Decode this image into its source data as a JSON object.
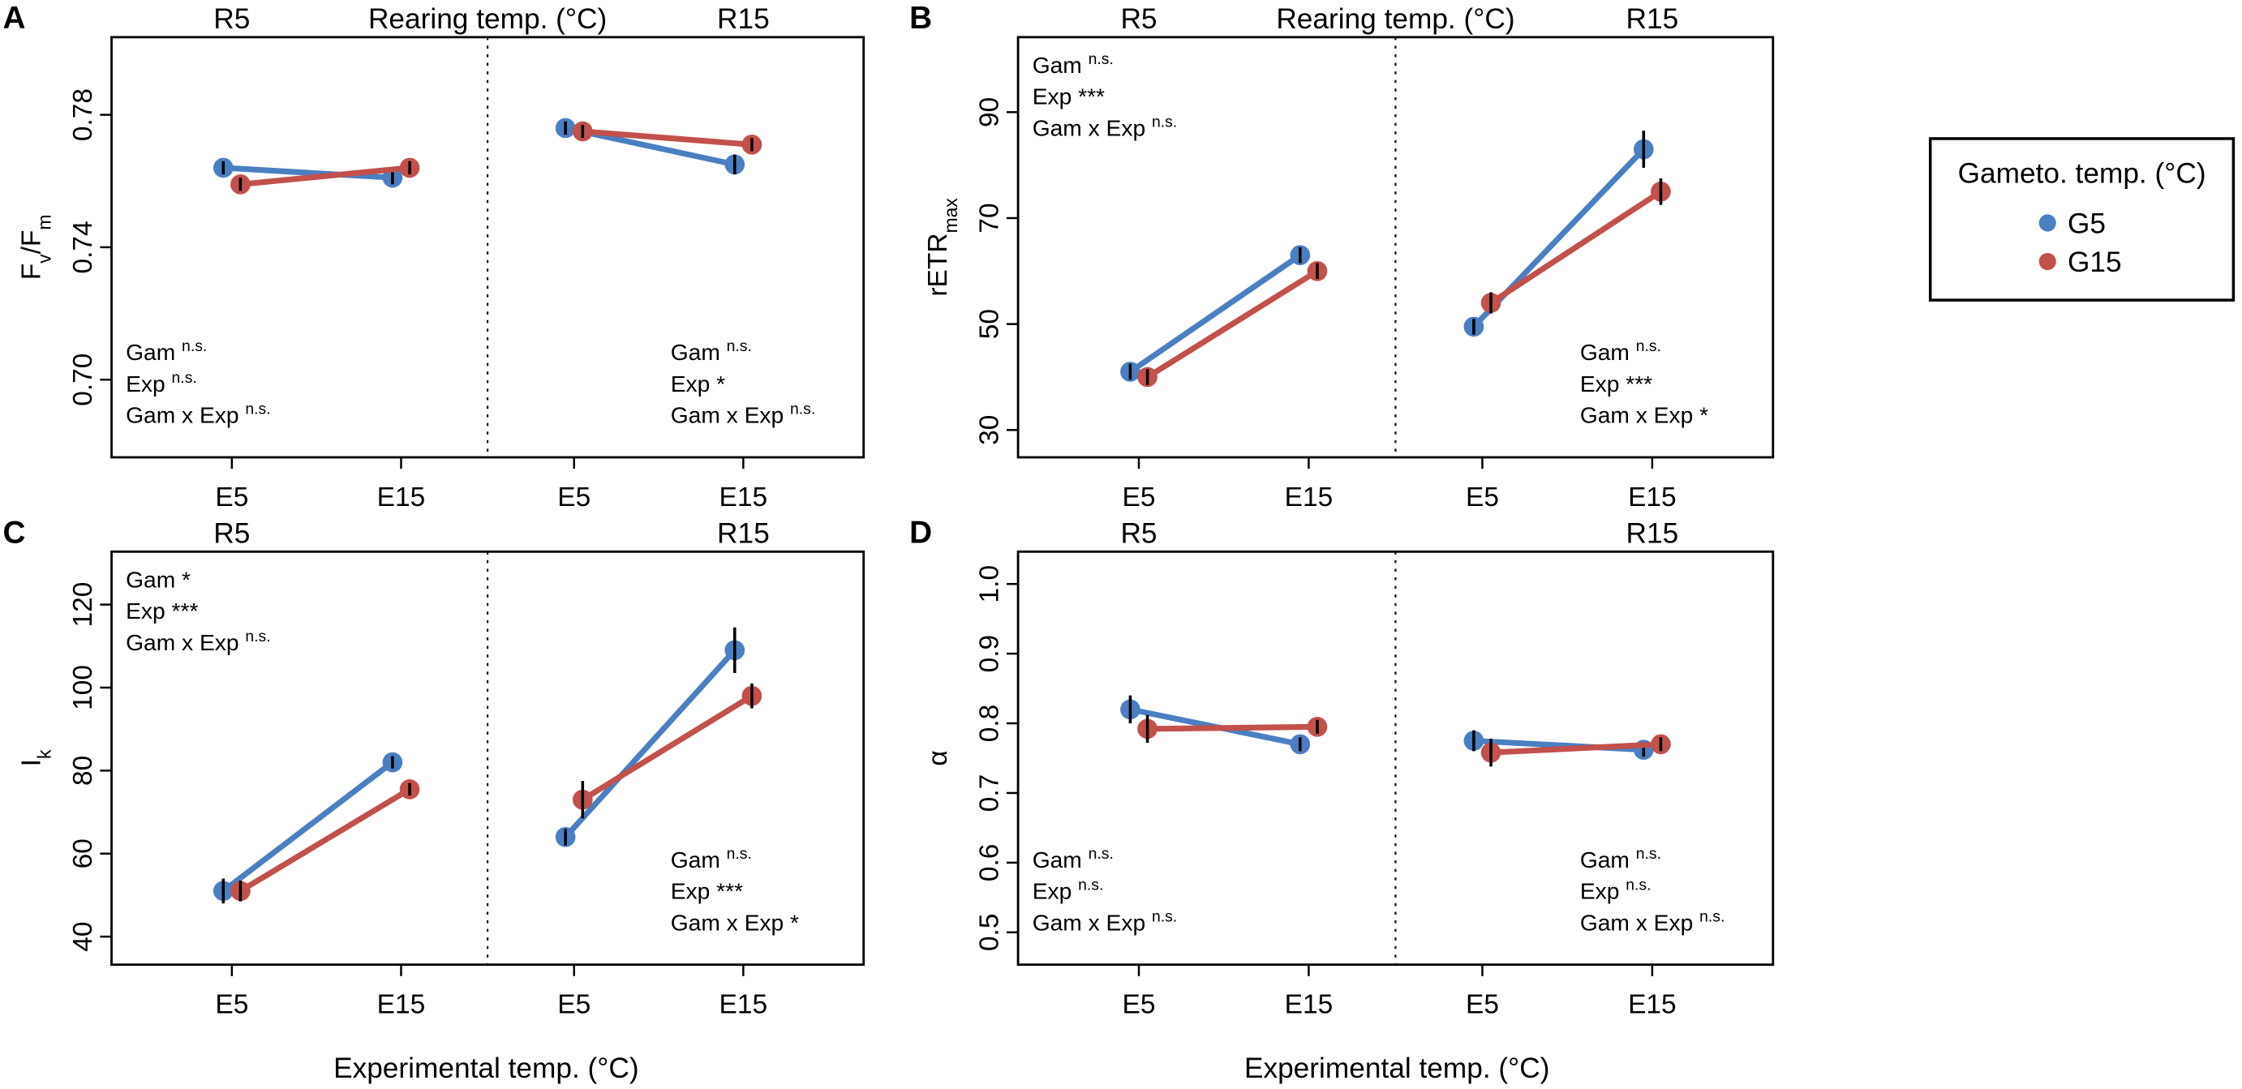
{
  "colors": {
    "G5": "#4a7fc1",
    "G15": "#c2504b",
    "axis": "#000000"
  },
  "x_title": "Experimental temp. (°C)",
  "legend": {
    "title": "Gameto. temp. (°C)",
    "entries": [
      {
        "label": "G5",
        "color_key": "G5"
      },
      {
        "label": "G15",
        "color_key": "G15"
      }
    ]
  },
  "chart_data": [
    {
      "type": "line",
      "id": "A",
      "letter": "A",
      "ylabel": "Fv/Fm",
      "ylabel_main": "F",
      "ylabel_sub1": "v",
      "ylabel_mid": "/F",
      "ylabel_sub2": "m",
      "ylim": [
        0.68,
        0.8
      ],
      "yticks": [
        "0.70",
        "0.74",
        "0.78"
      ],
      "strip_left": "R5",
      "strip_center": "Rearing temp. (°C)",
      "strip_right": "R15",
      "categories": [
        "E5",
        "E15",
        "E5",
        "E15"
      ],
      "groups": [
        {
          "rearing": "R5",
          "series": [
            {
              "name": "G5",
              "values": [
                0.764,
                0.761
              ],
              "err": [
                0.002,
                0.002
              ]
            },
            {
              "name": "G15",
              "values": [
                0.759,
                0.764
              ],
              "err": [
                0.002,
                0.002
              ]
            }
          ],
          "stats": {
            "position": "bottom-left",
            "gam": "Gam",
            "gam_sig": "n.s.",
            "exp": "Exp",
            "exp_sig": "n.s.",
            "int": "Gam x Exp",
            "int_sig": "n.s."
          }
        },
        {
          "rearing": "R15",
          "series": [
            {
              "name": "G5",
              "values": [
                0.776,
                0.765
              ],
              "err": [
                0.002,
                0.003
              ]
            },
            {
              "name": "G15",
              "values": [
                0.775,
                0.771
              ],
              "err": [
                0.002,
                0.002
              ]
            }
          ],
          "stats": {
            "position": "bottom-right",
            "gam": "Gam",
            "gam_sig": "n.s.",
            "exp": "Exp",
            "exp_sig": "*",
            "int": "Gam x Exp",
            "int_sig": "n.s."
          }
        }
      ]
    },
    {
      "type": "line",
      "id": "B",
      "letter": "B",
      "ylabel": "rETRmax",
      "ylabel_main": "rETR",
      "ylabel_sub1": "max",
      "ylim": [
        27,
        102
      ],
      "yticks": [
        "30",
        "50",
        "70",
        "90"
      ],
      "strip_left": "R5",
      "strip_center": "Rearing temp. (°C)",
      "strip_right": "R15",
      "categories": [
        "E5",
        "E15",
        "E5",
        "E15"
      ],
      "groups": [
        {
          "rearing": "R5",
          "series": [
            {
              "name": "G5",
              "values": [
                41,
                63
              ],
              "err": [
                1.5,
                1.5
              ]
            },
            {
              "name": "G15",
              "values": [
                40,
                60
              ],
              "err": [
                1.5,
                1.5
              ]
            }
          ],
          "stats": {
            "position": "top-left",
            "gam": "Gam",
            "gam_sig": "n.s.",
            "exp": "Exp",
            "exp_sig": "***",
            "int": "Gam x Exp",
            "int_sig": "n.s."
          }
        },
        {
          "rearing": "R15",
          "series": [
            {
              "name": "G5",
              "values": [
                49.5,
                83
              ],
              "err": [
                1.5,
                3.5
              ]
            },
            {
              "name": "G15",
              "values": [
                54,
                75
              ],
              "err": [
                2,
                2.5
              ]
            }
          ],
          "stats": {
            "position": "bottom-right",
            "gam": "Gam",
            "gam_sig": "n.s.",
            "exp": "Exp",
            "exp_sig": "***",
            "int": "Gam x Exp",
            "int_sig": "*"
          }
        }
      ]
    },
    {
      "type": "line",
      "id": "C",
      "letter": "C",
      "ylabel": "Ik",
      "ylabel_main": "I",
      "ylabel_sub1": "k",
      "ylim": [
        36,
        130
      ],
      "yticks": [
        "40",
        "60",
        "80",
        "100",
        "120"
      ],
      "strip_left": "R5",
      "strip_center": "",
      "strip_right": "R15",
      "categories": [
        "E5",
        "E15",
        "E5",
        "E15"
      ],
      "groups": [
        {
          "rearing": "R5",
          "series": [
            {
              "name": "G5",
              "values": [
                51,
                82
              ],
              "err": [
                3,
                1.5
              ]
            },
            {
              "name": "G15",
              "values": [
                51,
                75.5
              ],
              "err": [
                2.5,
                1.5
              ]
            }
          ],
          "stats": {
            "position": "top-left",
            "gam": "Gam",
            "gam_sig": "*",
            "exp": "Exp",
            "exp_sig": "***",
            "int": "Gam x Exp",
            "int_sig": "n.s."
          }
        },
        {
          "rearing": "R15",
          "series": [
            {
              "name": "G5",
              "values": [
                64,
                109
              ],
              "err": [
                2,
                5.5
              ]
            },
            {
              "name": "G15",
              "values": [
                73,
                98
              ],
              "err": [
                4.5,
                3
              ]
            }
          ],
          "stats": {
            "position": "bottom-right",
            "gam": "Gam",
            "gam_sig": "n.s.",
            "exp": "Exp",
            "exp_sig": "***",
            "int": "Gam x Exp",
            "int_sig": "*"
          }
        }
      ]
    },
    {
      "type": "line",
      "id": "D",
      "letter": "D",
      "ylabel": "α",
      "ylabel_main": "α",
      "ylim": [
        0.47,
        1.03
      ],
      "yticks": [
        "0.5",
        "0.6",
        "0.7",
        "0.8",
        "0.9",
        "1.0"
      ],
      "strip_left": "R5",
      "strip_center": "",
      "strip_right": "R15",
      "categories": [
        "E5",
        "E15",
        "E5",
        "E15"
      ],
      "groups": [
        {
          "rearing": "R5",
          "series": [
            {
              "name": "G5",
              "values": [
                0.82,
                0.77
              ],
              "err": [
                0.02,
                0.01
              ]
            },
            {
              "name": "G15",
              "values": [
                0.792,
                0.795
              ],
              "err": [
                0.02,
                0.01
              ]
            }
          ],
          "stats": {
            "position": "bottom-left",
            "gam": "Gam",
            "gam_sig": "n.s.",
            "exp": "Exp",
            "exp_sig": "n.s.",
            "int": "Gam x Exp",
            "int_sig": "n.s."
          }
        },
        {
          "rearing": "R15",
          "series": [
            {
              "name": "G5",
              "values": [
                0.775,
                0.762
              ],
              "err": [
                0.015,
                0.01
              ]
            },
            {
              "name": "G15",
              "values": [
                0.758,
                0.77
              ],
              "err": [
                0.02,
                0.01
              ]
            }
          ],
          "stats": {
            "position": "bottom-right",
            "gam": "Gam",
            "gam_sig": "n.s.",
            "exp": "Exp",
            "exp_sig": "n.s.",
            "int": "Gam x Exp",
            "int_sig": "n.s."
          }
        }
      ]
    }
  ]
}
